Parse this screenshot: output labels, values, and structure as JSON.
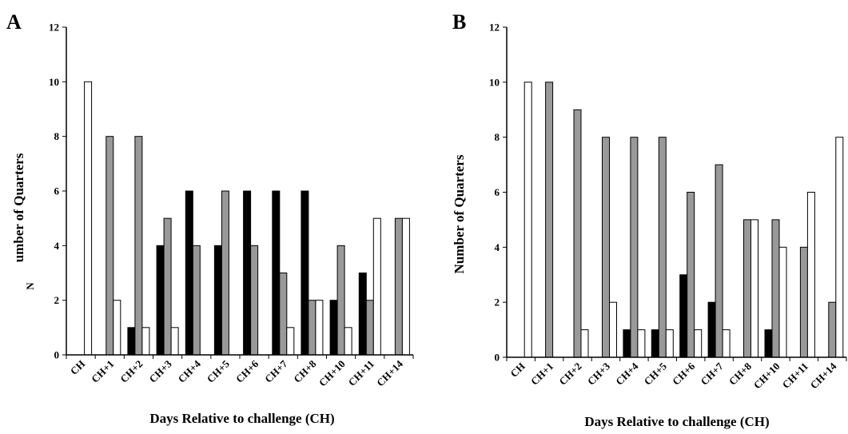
{
  "chart_data": [
    {
      "panel": "A",
      "type": "bar",
      "categories": [
        "CH",
        "CH+1",
        "CH+2",
        "CH+3",
        "CH+4",
        "CH+5",
        "CH+6",
        "CH+7",
        "CH+8",
        "CH+10",
        "CH+11",
        "CH+14"
      ],
      "series": [
        {
          "color": "#000000",
          "values": [
            0,
            0,
            1,
            4,
            6,
            4,
            6,
            6,
            6,
            2,
            3,
            0
          ]
        },
        {
          "color": "#999999",
          "values": [
            0,
            8,
            8,
            5,
            4,
            6,
            4,
            3,
            2,
            4,
            2,
            5
          ]
        },
        {
          "color": "#ffffff",
          "values": [
            10,
            2,
            1,
            1,
            0,
            0,
            0,
            1,
            2,
            1,
            5,
            5
          ]
        }
      ],
      "xlabel": "Days Relative to challenge (CH)",
      "ylabel_main": "umber of Quarters",
      "ylabel_extra": "N",
      "ylim": [
        0,
        12
      ],
      "yticks": [
        "0",
        "2",
        "4",
        "6",
        "8",
        "10",
        "12"
      ],
      "grid": false,
      "legend": "none"
    },
    {
      "panel": "B",
      "type": "bar",
      "categories": [
        "CH",
        "CH+1",
        "CH+2",
        "CH+3",
        "CH+4",
        "CH+5",
        "CH+6",
        "CH+7",
        "CH+8",
        "CH+10",
        "CH+11",
        "CH+14"
      ],
      "series": [
        {
          "color": "#000000",
          "values": [
            0,
            0,
            0,
            0,
            1,
            1,
            3,
            2,
            0,
            1,
            0,
            0
          ]
        },
        {
          "color": "#999999",
          "values": [
            0,
            10,
            9,
            8,
            8,
            8,
            6,
            7,
            5,
            5,
            4,
            2
          ]
        },
        {
          "color": "#ffffff",
          "values": [
            10,
            0,
            1,
            2,
            1,
            1,
            1,
            1,
            5,
            4,
            6,
            8
          ]
        }
      ],
      "xlabel": "Days Relative to challenge (CH)",
      "ylabel": "Number of Quarters",
      "ylim": [
        0,
        12
      ],
      "yticks": [
        "0",
        "2",
        "4",
        "6",
        "8",
        "10",
        "12"
      ],
      "grid": false,
      "legend": "none"
    }
  ]
}
